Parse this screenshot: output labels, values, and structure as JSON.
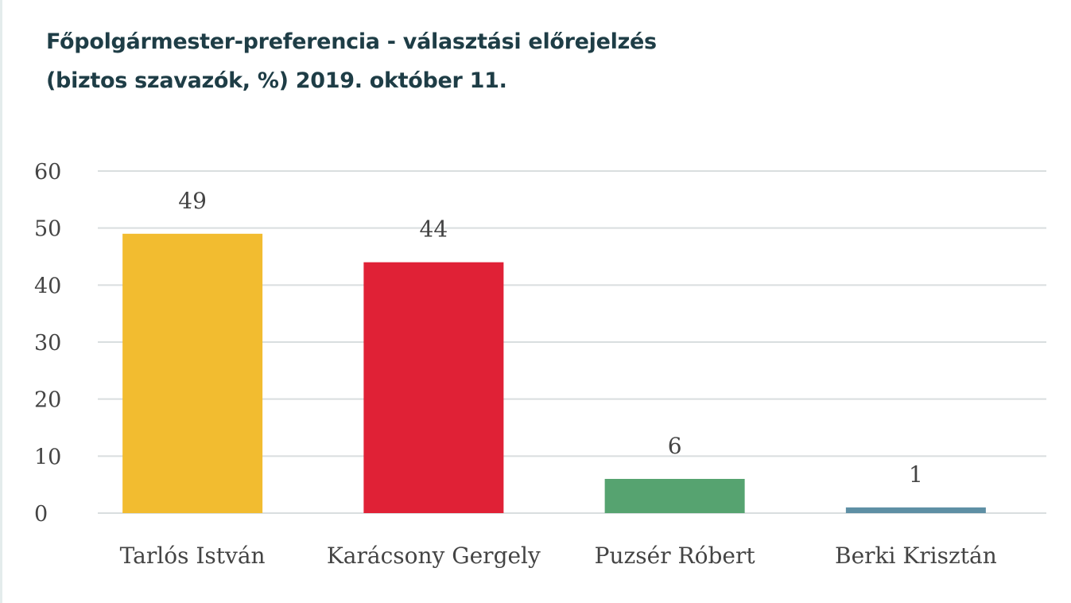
{
  "chart_data": {
    "type": "bar",
    "title": [
      "Főpolgármester-preferencia - választási előrejelzés",
      "(biztos szavazók, %) 2019. október 11."
    ],
    "categories": [
      "Tarlós István",
      "Karácsony Gergely",
      "Puzsér Róbert",
      "Berki Krisztán"
    ],
    "values": [
      49,
      44,
      6,
      1
    ],
    "colors": [
      "#f2bc30",
      "#e02136",
      "#56a370",
      "#5e8fa4"
    ],
    "ylim": [
      0,
      60
    ],
    "yticks": [
      "0",
      "10",
      "20",
      "30",
      "40",
      "50",
      "60"
    ],
    "data_labels": [
      "49",
      "44",
      "6",
      "1"
    ],
    "grid": true,
    "xlabel": "",
    "ylabel": ""
  }
}
